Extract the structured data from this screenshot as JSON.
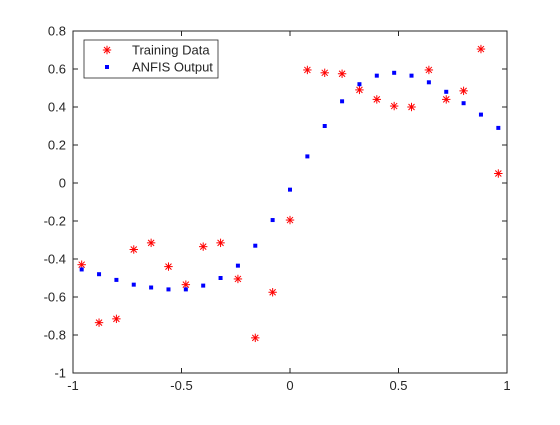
{
  "chart_data": {
    "type": "scatter",
    "title": "",
    "xlabel": "",
    "ylabel": "",
    "xlim": [
      -1,
      1
    ],
    "ylim": [
      -1,
      0.8
    ],
    "grid": false,
    "legend_position": "top-left",
    "x_ticks": [
      -1,
      -0.5,
      0,
      0.5,
      1
    ],
    "x_tick_labels": [
      "-1",
      "-0.5",
      "0",
      "0.5",
      "1"
    ],
    "y_ticks": [
      -1,
      -0.8,
      -0.6,
      -0.4,
      -0.2,
      0,
      0.2,
      0.4,
      0.6,
      0.8
    ],
    "y_tick_labels": [
      "-1",
      "-0.8",
      "-0.6",
      "-0.4",
      "-0.2",
      "0",
      "0.2",
      "0.4",
      "0.6",
      "0.8"
    ],
    "series": [
      {
        "name": "Training Data",
        "marker": "asterisk",
        "color": "#ff0000",
        "x": [
          -0.96,
          -0.88,
          -0.8,
          -0.72,
          -0.64,
          -0.56,
          -0.48,
          -0.4,
          -0.32,
          -0.24,
          -0.16,
          -0.08,
          0.0,
          0.08,
          0.16,
          0.24,
          0.32,
          0.4,
          0.48,
          0.56,
          0.64,
          0.72,
          0.8,
          0.88,
          0.96
        ],
        "y": [
          -0.43,
          -0.735,
          -0.715,
          -0.35,
          -0.315,
          -0.44,
          -0.535,
          -0.335,
          -0.315,
          -0.505,
          -0.815,
          -0.575,
          -0.195,
          0.595,
          0.58,
          0.575,
          0.49,
          0.44,
          0.405,
          0.4,
          0.595,
          0.44,
          0.485,
          0.705,
          0.05
        ]
      },
      {
        "name": "ANFIS Output",
        "marker": "dot",
        "color": "#0000ff",
        "x": [
          -0.96,
          -0.88,
          -0.8,
          -0.72,
          -0.64,
          -0.56,
          -0.48,
          -0.4,
          -0.32,
          -0.24,
          -0.16,
          -0.08,
          0.0,
          0.08,
          0.16,
          0.24,
          0.32,
          0.4,
          0.48,
          0.56,
          0.64,
          0.72,
          0.8,
          0.88,
          0.96
        ],
        "y": [
          -0.455,
          -0.48,
          -0.51,
          -0.535,
          -0.55,
          -0.56,
          -0.56,
          -0.54,
          -0.5,
          -0.435,
          -0.33,
          -0.195,
          -0.035,
          0.14,
          0.3,
          0.43,
          0.52,
          0.565,
          0.58,
          0.565,
          0.53,
          0.48,
          0.42,
          0.36,
          0.29
        ]
      }
    ]
  }
}
